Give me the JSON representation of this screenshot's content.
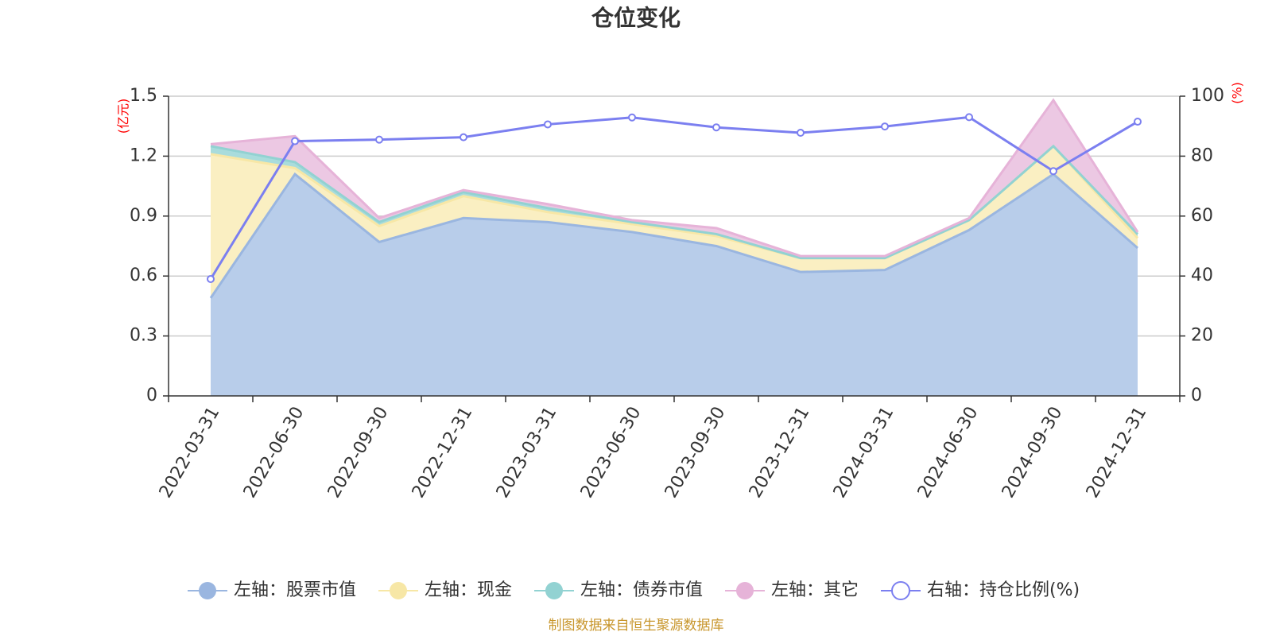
{
  "chart_data": {
    "type": "area",
    "title": "仓位变化",
    "left_axis_unit": "(亿元)",
    "right_axis_unit": "(%)",
    "categories": [
      "2022-03-31",
      "2022-06-30",
      "2022-09-30",
      "2022-12-31",
      "2023-03-31",
      "2023-06-30",
      "2023-09-30",
      "2023-12-31",
      "2024-03-31",
      "2024-06-30",
      "2024-09-30",
      "2024-12-31"
    ],
    "left_ylim": [
      0,
      1.5
    ],
    "left_ticks": [
      "0",
      "0.3",
      "0.6",
      "0.9",
      "1.2",
      "1.5"
    ],
    "right_ylim": [
      0,
      100
    ],
    "right_ticks": [
      "0",
      "20",
      "40",
      "60",
      "80",
      "100"
    ],
    "stacked": true,
    "series": [
      {
        "name": "左轴：股票市值",
        "axis": "left",
        "color": "#9ab6e0",
        "fill": "#b8cdea",
        "values": [
          0.49,
          1.11,
          0.77,
          0.89,
          0.87,
          0.82,
          0.75,
          0.62,
          0.63,
          0.83,
          1.11,
          0.74
        ]
      },
      {
        "name": "左轴：现金",
        "axis": "left",
        "color": "#f7e7a6",
        "fill": "#faefc2",
        "values": [
          0.72,
          0.03,
          0.08,
          0.11,
          0.05,
          0.04,
          0.05,
          0.07,
          0.06,
          0.05,
          0.14,
          0.05
        ]
      },
      {
        "name": "左轴：债券市值",
        "axis": "left",
        "color": "#92d2d2",
        "fill": "#a9dcdc",
        "values": [
          0.04,
          0.03,
          0.02,
          0.02,
          0.02,
          0.01,
          0.01,
          0.0,
          0.0,
          0.0,
          0.0,
          0.02
        ]
      },
      {
        "name": "左轴：其它",
        "axis": "left",
        "color": "#e6b3d8",
        "fill": "#ecc8e3",
        "values": [
          0.01,
          0.13,
          0.02,
          0.01,
          0.02,
          0.01,
          0.03,
          0.01,
          0.01,
          0.01,
          0.23,
          0.01
        ]
      },
      {
        "name": "右轴：持仓比例(%)",
        "axis": "right",
        "type": "line",
        "color": "#7b7ff0",
        "values": [
          39,
          85,
          85.5,
          86.3,
          90.6,
          92.9,
          89.6,
          87.8,
          89.9,
          93,
          75,
          91.5
        ]
      }
    ],
    "grid": true,
    "legend_position": "bottom"
  },
  "source_note": "制图数据来自恒生聚源数据库"
}
